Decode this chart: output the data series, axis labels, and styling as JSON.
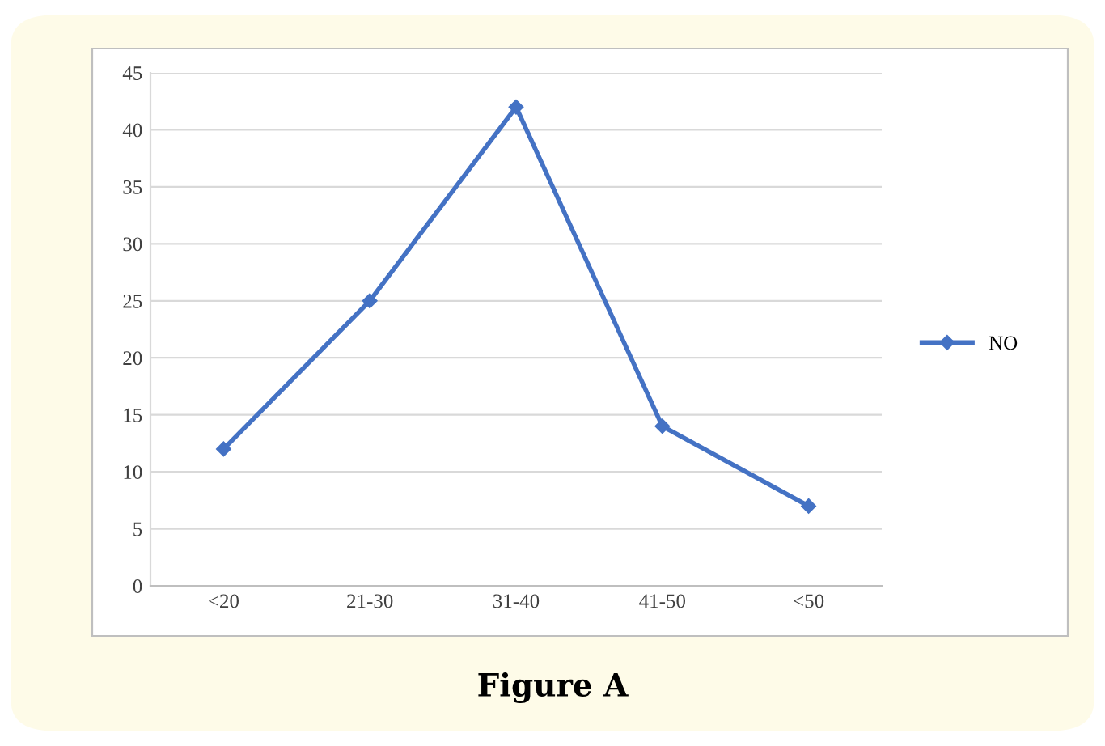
{
  "chart_data": {
    "type": "line",
    "title": "Figure A",
    "categories": [
      "<20",
      "21-30",
      "31-40",
      "41-50",
      "<50"
    ],
    "series": [
      {
        "name": "NO",
        "color": "#4472c4",
        "values": [
          12,
          25,
          42,
          14,
          7
        ]
      }
    ],
    "ylim": [
      0,
      45
    ],
    "yticks": [
      0,
      5,
      10,
      15,
      20,
      25,
      30,
      35,
      40,
      45
    ],
    "grid": "y",
    "legend": "right",
    "marker": "diamond",
    "line_style": "solid"
  }
}
